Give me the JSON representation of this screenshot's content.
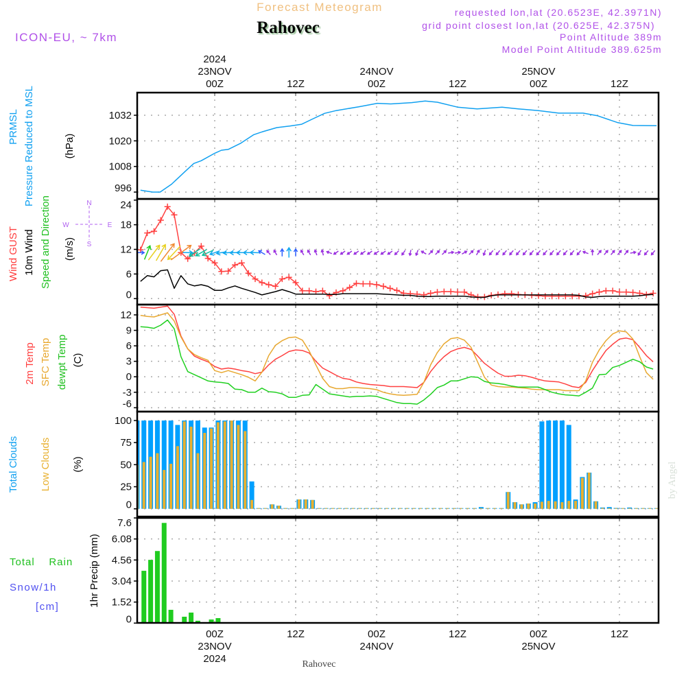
{
  "header": {
    "subtitle": "Forecast Meteogram",
    "location": "Rahovec",
    "model": "ICON-EU, ~ 7km",
    "requested": "requested lon,lat (20.6523E, 42.3971N)",
    "grid_point": "grid point closest lon,lat (20.625E, 42.375N)",
    "point_altitude": "Point Altitude 389m",
    "model_altitude": "Model Point Altitude 389.625m",
    "footer_location": "Rahovec",
    "watermark": "by Angel"
  },
  "labels": {
    "prmsl": "PRMSL",
    "pressure": "Pressure Reduced to MSL",
    "hpa": "(hPa)",
    "wind_gust": "Wind GUST",
    "wind_10m": "10m Wind",
    "speed_dir": "Speed and Direction",
    "ms": "(m/s)",
    "temp_2m": "2m Temp",
    "temp_sfc": "SFC Temp",
    "temp_dew": "dewpt Temp",
    "celsius": "(C)",
    "total_clouds": "Total Clouds",
    "low_clouds": "Low Clouds",
    "percent": "(%)",
    "total_rain": "Total    Rain",
    "snow": "Snow/1h",
    "cm": "[cm]",
    "precip": "1hr Precip (mm)",
    "compass": {
      "n": "N",
      "s": "S",
      "w": "W",
      "e": "E"
    }
  },
  "colors": {
    "pressure": "#10a0f0",
    "gust": "#ff4040",
    "wind": "#000000",
    "temp_2m": "#ff4040",
    "temp_sfc": "#e8a830",
    "temp_dew": "#20d020",
    "total_clouds": "#00a0ff",
    "low_clouds": "#e8b030",
    "rain": "#20cc20",
    "snow": "#5050f0",
    "header_purple": "#b050e8",
    "subtitle": "#f0c080"
  },
  "time_axis": {
    "unit": "hours since 23NOV2024 00Z",
    "range": [
      -11.5,
      65.8
    ],
    "ticks": [
      {
        "hour": 0,
        "time": "00Z",
        "date": "23NOV",
        "year": "2024"
      },
      {
        "hour": 12,
        "time": "12Z"
      },
      {
        "hour": 24,
        "time": "00Z",
        "date": "24NOV"
      },
      {
        "hour": 36,
        "time": "12Z"
      },
      {
        "hour": 48,
        "time": "00Z",
        "date": "25NOV"
      },
      {
        "hour": 60,
        "time": "12Z"
      }
    ]
  },
  "chart_data": [
    {
      "id": "pressure",
      "type": "line",
      "title": "PRMSL Pressure Reduced to MSL",
      "ylabel": "(hPa)",
      "ylim": [
        992.8,
        1042.6
      ],
      "yticks": [
        996,
        1008,
        1020,
        1032
      ],
      "series": [
        {
          "name": "PRMSL",
          "x": [
            -11,
            -9.2,
            -8.1,
            -6.4,
            -4.4,
            -3.1,
            -2,
            0,
            1,
            2,
            3.8,
            5.8,
            7.1,
            9.2,
            11.2,
            12.9,
            14.6,
            16.3,
            18,
            21.4,
            24.1,
            26.1,
            29.2,
            31.2,
            33,
            36,
            38.9,
            42.6,
            45,
            48,
            51,
            54.6,
            56.7,
            59.7,
            62,
            65.5
          ],
          "y": [
            996.9,
            996,
            996,
            999.7,
            1005.6,
            1009.4,
            1010.7,
            1014.2,
            1015.6,
            1016,
            1018.8,
            1022.9,
            1024.3,
            1026.2,
            1027,
            1027.8,
            1030.4,
            1032.9,
            1034.2,
            1036,
            1037.6,
            1037.3,
            1037.9,
            1038.7,
            1038.1,
            1035.8,
            1035,
            1035.8,
            1035,
            1034.2,
            1033,
            1033,
            1031.8,
            1028.6,
            1027.2,
            1027.1
          ]
        }
      ]
    },
    {
      "id": "wind",
      "type": "line",
      "title": "Wind GUST / 10m Wind Speed and Direction",
      "ylabel": "(m/s)",
      "ylim": [
        -1.4,
        24.2
      ],
      "yticks": [
        0,
        6,
        12,
        18,
        24
      ],
      "x_start": -11,
      "x_step": 1,
      "series": [
        {
          "name": "Wind GUST",
          "values": [
            11.9,
            16.0,
            16.4,
            19.1,
            22.4,
            20.4,
            11.2,
            9.7,
            11.1,
            12.8,
            9.8,
            8.7,
            6.6,
            6.7,
            8.2,
            8.7,
            6.2,
            4.8,
            3.9,
            3.4,
            3.0,
            4.8,
            5.2,
            3.9,
            1.9,
            1.9,
            1.7,
            1.9,
            0.7,
            1.5,
            1.9,
            2.7,
            3.7,
            3.6,
            3.6,
            3.4,
            3.0,
            2.5,
            2.0,
            1.3,
            1.2,
            1.1,
            0.9,
            1.3,
            1.6,
            1.7,
            1.7,
            1.6,
            1.6,
            0.9,
            0.4,
            0.4,
            0.8,
            1.0,
            1.2,
            1.2,
            1.0,
            0.9,
            0.8,
            0.7,
            0.6,
            0.6,
            0.6,
            0.6,
            0.6,
            0.6,
            0.7,
            1.2,
            1.6,
            1.9,
            1.9,
            1.6,
            1.6,
            1.5,
            1.3,
            1.0,
            1.3
          ]
        },
        {
          "name": "10m Wind",
          "values": [
            4.2,
            5.6,
            5.3,
            6.8,
            7.0,
            2.5,
            5.6,
            3.6,
            3.1,
            3.4,
            3.0,
            2.0,
            2.0,
            2.6,
            3.1,
            2.5,
            2.0,
            1.5,
            0.9,
            1.3,
            1.7,
            2.2,
            1.7,
            1.1,
            1.1,
            1.1,
            1.1,
            1.1,
            1.0,
            1.0,
            1.2,
            1.2,
            1.2,
            1.2,
            1.2,
            1.2,
            1.1,
            1.0,
            0.9,
            0.8,
            0.8,
            0.6,
            0.5,
            0.5,
            0.6,
            0.6,
            0.6,
            0.6,
            0.6,
            0.4,
            0.3,
            0.3,
            0.7,
            0.9,
            0.9,
            0.9,
            0.9,
            0.9,
            0.9,
            0.9,
            0.9,
            0.9,
            0.9,
            0.9,
            0.9,
            0.8,
            0.4,
            0.3,
            0.5,
            0.6,
            0.6,
            0.6,
            0.6,
            0.6,
            0.7,
            0.9,
            1.0
          ]
        }
      ],
      "direction_arrows": {
        "x_start": -11,
        "x_step": 1,
        "plotted_at": 11.2,
        "to_deg": [
          90,
          22,
          37,
          30,
          37,
          223,
          54,
          92,
          235,
          240,
          245,
          250,
          260,
          265,
          268,
          270,
          270,
          272,
          300,
          320,
          330,
          0,
          0,
          0,
          330,
          330,
          340,
          345,
          290,
          235,
          235,
          235,
          235,
          235,
          235,
          235,
          235,
          235,
          225,
          215,
          190,
          200,
          300,
          45,
          45,
          45,
          80,
          80,
          60,
          45,
          30,
          200,
          220,
          220,
          220,
          220,
          220,
          220,
          220,
          220,
          220,
          220,
          220,
          220,
          220,
          220,
          290,
          0,
          40,
          40,
          40,
          40,
          40,
          80,
          210,
          220,
          220
        ],
        "speed": [
          3,
          6,
          7.5,
          7.5,
          9,
          7.5,
          10,
          4,
          5,
          5,
          5,
          4,
          4,
          4,
          4,
          4,
          4,
          4,
          3,
          2,
          2,
          3,
          4,
          3,
          2,
          2,
          2,
          2,
          2,
          2,
          2,
          2,
          2,
          2,
          2,
          2,
          2,
          2,
          2,
          2,
          2,
          2,
          2,
          2,
          2,
          2,
          2,
          2,
          2,
          2,
          2,
          2,
          2,
          2,
          2,
          2,
          2,
          2,
          2,
          2,
          2,
          2,
          2,
          2,
          2,
          2,
          2,
          2,
          2,
          2,
          2,
          2,
          2,
          2,
          2,
          2,
          2
        ]
      }
    },
    {
      "id": "temp",
      "type": "line",
      "title": "2m Temp / SFC Temp / dewpt Temp",
      "ylabel": "(C)",
      "ylim": [
        -6.75,
        14
      ],
      "yticks": [
        -6,
        -3,
        0,
        3,
        6,
        9,
        12
      ],
      "x_start": -11,
      "x_step": 1,
      "series": [
        {
          "name": "2m Temp",
          "values": [
            13.5,
            13.4,
            13.3,
            13.5,
            13.7,
            12.1,
            7.9,
            5.4,
            4.0,
            3.4,
            2.9,
            2.0,
            1.5,
            1.7,
            1.5,
            1.2,
            1.0,
            0.6,
            0.9,
            2.3,
            3.4,
            4.1,
            4.9,
            5.2,
            5.1,
            4.6,
            3.0,
            1.7,
            1.0,
            0.3,
            -0.3,
            -0.5,
            -1.0,
            -1.3,
            -1.5,
            -1.6,
            -1.7,
            -1.9,
            -1.9,
            -1.9,
            -2.0,
            -2.1,
            -1.1,
            1.0,
            2.6,
            3.9,
            4.9,
            5.4,
            5.7,
            5.3,
            4.0,
            2.6,
            1.6,
            0.7,
            0.1,
            0.1,
            0.3,
            0.2,
            -0.1,
            -0.5,
            -0.8,
            -0.9,
            -1.0,
            -1.4,
            -1.9,
            -2.1,
            -1.1,
            1.2,
            3.2,
            5.1,
            6.3,
            7.3,
            7.5,
            7.2,
            5.7,
            4.1,
            2.9
          ]
        },
        {
          "name": "SFC Temp",
          "values": [
            11.9,
            11.7,
            11.6,
            12.0,
            12.4,
            10.8,
            7.7,
            5.4,
            4.3,
            3.7,
            3.2,
            1.2,
            0.8,
            1.2,
            0.8,
            0.4,
            -0.1,
            -0.8,
            0.9,
            4.1,
            6.1,
            7.0,
            7.6,
            7.7,
            7.1,
            5.0,
            2.3,
            -0.3,
            -1.9,
            -2.3,
            -2.3,
            -2.1,
            -2.1,
            -2.2,
            -2.3,
            -2.5,
            -3.0,
            -3.3,
            -3.5,
            -3.6,
            -3.5,
            -3.4,
            -1.1,
            2.3,
            4.7,
            6.4,
            7.4,
            7.6,
            7.1,
            5.7,
            2.8,
            -0.1,
            -1.6,
            -1.9,
            -2.0,
            -2.0,
            -2.1,
            -2.2,
            -2.4,
            -2.5,
            -2.5,
            -2.5,
            -2.5,
            -2.7,
            -2.7,
            -2.7,
            -0.8,
            2.8,
            5.2,
            7.0,
            8.3,
            8.9,
            8.7,
            7.3,
            3.9,
            0.8,
            -0.5
          ]
        },
        {
          "name": "dewpt Temp",
          "values": [
            9.7,
            9.6,
            9.4,
            10.0,
            11.0,
            9.3,
            3.9,
            1.0,
            0.4,
            -0.2,
            -0.8,
            -1.0,
            -1.1,
            -1.3,
            -2.4,
            -2.5,
            -3.0,
            -3.0,
            -2.2,
            -2.9,
            -3.0,
            -3.3,
            -4.0,
            -4.0,
            -3.6,
            -3.5,
            -1.5,
            -2.4,
            -3.3,
            -3.5,
            -3.7,
            -3.9,
            -3.8,
            -3.8,
            -3.7,
            -3.8,
            -4.2,
            -4.6,
            -5.0,
            -5.2,
            -5.2,
            -5.3,
            -4.5,
            -3.4,
            -2.1,
            -1.6,
            -0.8,
            -0.8,
            -0.4,
            0,
            -0.1,
            -0.9,
            -1.2,
            -1.3,
            -1.5,
            -1.8,
            -2.0,
            -2.0,
            -2.0,
            -2.0,
            -2.5,
            -3.0,
            -3.3,
            -3.5,
            -3.6,
            -3.7,
            -3.0,
            -2.2,
            0.4,
            0.5,
            1.8,
            2.2,
            2.8,
            3.4,
            2.9,
            1.9,
            1.5
          ]
        }
      ]
    },
    {
      "id": "clouds",
      "type": "bar",
      "title": "Total Clouds / Low Clouds",
      "ylabel": "(%)",
      "ylim": [
        -8.8,
        110
      ],
      "yticks": [
        0,
        25,
        50,
        75,
        100
      ],
      "x_start": -11.5,
      "x_step": 1,
      "series": [
        {
          "name": "Total Clouds",
          "values": [
            100,
            100,
            100,
            100,
            100,
            100,
            95,
            100,
            100,
            100,
            92,
            92,
            100,
            100,
            100,
            100,
            100,
            31,
            0,
            0,
            5,
            3.5,
            0,
            0,
            10.6,
            10.6,
            10,
            0,
            0,
            0,
            0,
            0,
            0,
            0,
            0,
            0,
            0,
            0,
            0,
            0,
            0,
            0,
            0,
            0,
            0,
            0,
            0,
            0,
            0,
            0,
            0,
            2,
            0,
            0,
            0,
            19,
            7.5,
            5,
            6,
            7.5,
            99,
            100,
            100,
            100,
            95,
            10.5,
            36,
            41,
            8.5,
            1.5,
            2,
            1,
            0.5,
            1.5,
            0,
            0,
            0,
            0
          ]
        },
        {
          "name": "Low Clouds",
          "values": [
            50,
            53,
            59,
            63,
            44,
            51,
            71,
            99,
            93,
            63,
            86,
            91,
            98,
            99,
            100,
            95,
            88,
            10,
            0,
            0,
            5,
            3.5,
            0,
            0,
            10.6,
            10.6,
            10,
            0,
            0,
            0,
            0,
            0,
            0,
            0,
            0,
            0,
            0,
            0,
            0,
            0,
            0,
            0,
            0,
            0,
            0,
            0,
            0,
            0,
            0,
            0,
            0,
            0,
            0,
            0,
            0,
            19,
            7.5,
            5,
            6,
            6,
            8,
            9,
            8.5,
            7.5,
            9,
            9,
            35,
            41,
            8.5,
            1,
            0.5,
            0.5,
            0.5,
            0.5,
            0,
            0,
            0,
            0
          ]
        }
      ]
    },
    {
      "id": "precip",
      "type": "bar",
      "title": "Total Rain / Snow/1h [cm]",
      "ylabel": "1hr Precip (mm)",
      "ylim": [
        0,
        7.6
      ],
      "yticks": [
        0,
        1.52,
        3.04,
        4.56,
        6.08,
        7.6
      ],
      "x_start": -11.5,
      "x_step": 1,
      "series": [
        {
          "name": "Total Rain",
          "values": [
            0,
            3.78,
            4.57,
            5.21,
            7.24,
            0.96,
            0,
            0.46,
            0.76,
            0.17,
            0,
            0.26,
            0.36,
            0,
            0,
            0,
            0,
            0,
            0,
            0,
            0,
            0,
            0,
            0,
            0,
            0,
            0,
            0,
            0,
            0,
            0,
            0,
            0,
            0,
            0,
            0,
            0,
            0,
            0,
            0,
            0,
            0,
            0,
            0,
            0,
            0,
            0,
            0,
            0,
            0,
            0,
            0,
            0,
            0,
            0,
            0,
            0,
            0,
            0,
            0,
            0,
            0,
            0,
            0,
            0,
            0,
            0,
            0,
            0,
            0,
            0,
            0,
            0,
            0,
            0,
            0,
            0,
            0
          ]
        }
      ]
    }
  ]
}
